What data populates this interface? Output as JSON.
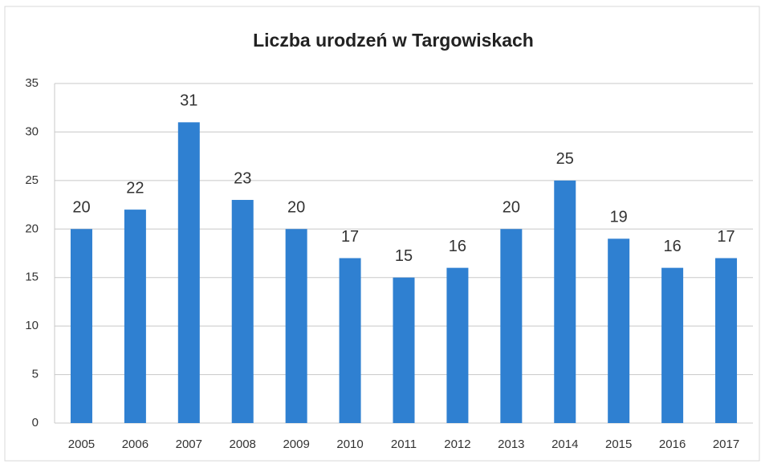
{
  "chart_data": {
    "type": "bar",
    "title": "Liczba urodzeń w Targowiskach",
    "categories": [
      "2005",
      "2006",
      "2007",
      "2008",
      "2009",
      "2010",
      "2011",
      "2012",
      "2013",
      "2014",
      "2015",
      "2016",
      "2017"
    ],
    "values": [
      20,
      22,
      31,
      23,
      20,
      17,
      15,
      16,
      20,
      25,
      19,
      16,
      17
    ],
    "color": "#2f80d1",
    "ylim": [
      0,
      35
    ],
    "yticks": [
      0,
      5,
      10,
      15,
      20,
      25,
      30,
      35
    ],
    "grid": true
  }
}
